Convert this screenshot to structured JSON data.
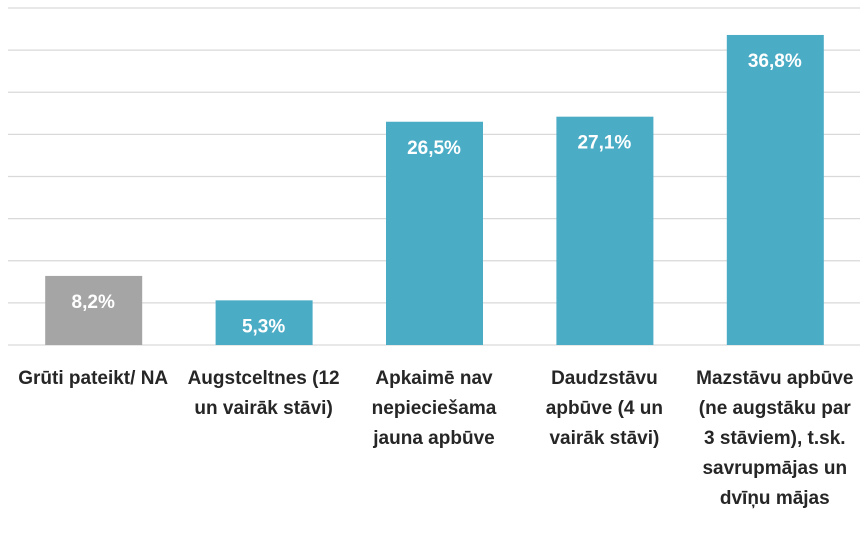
{
  "chart_data": {
    "type": "bar",
    "categories": [
      "Grūti pateikt/ NA",
      "Augstceltnes (12 un vairāk stāvi)",
      "Apkaimē nav nepieciešama jauna apbūve",
      "Daudzstāvu apbūve (4 un vairāk stāvi)",
      "Mazstāvu apbūve (ne augstāku par 3 stāviem), t.sk. savrupmājas un dvīņu mājas"
    ],
    "values": [
      8.2,
      5.3,
      26.5,
      27.1,
      36.8
    ],
    "value_labels": [
      "8,2%",
      "5,3%",
      "26,5%",
      "27,1%",
      "36,8%"
    ],
    "colors": [
      "#a5a5a5",
      "#4bacc6",
      "#4bacc6",
      "#4bacc6",
      "#4bacc6"
    ],
    "ylim": [
      0,
      40
    ],
    "yticks": [
      0,
      5,
      10,
      15,
      20,
      25,
      30,
      35,
      40
    ],
    "grid": true
  }
}
